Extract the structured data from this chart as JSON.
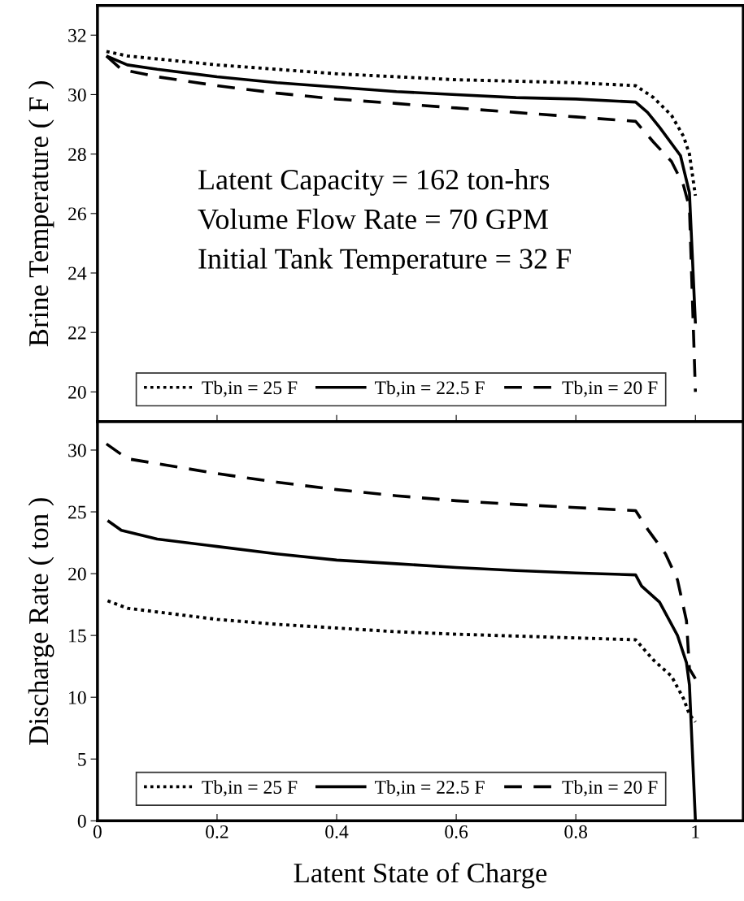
{
  "chart_data": [
    {
      "type": "line",
      "ylabel": "Brine Temperature ( F )",
      "xlim": [
        0,
        1.08
      ],
      "xticks": [
        0,
        0.2,
        0.4,
        0.6,
        0.8,
        1
      ],
      "ylim": [
        19,
        33
      ],
      "yticks": [
        20,
        22,
        24,
        26,
        28,
        30,
        32
      ],
      "tick_labels": "y",
      "legend": "bottom",
      "grid": false,
      "annotations": [
        "Latent Capacity = 162 ton-hrs",
        "Volume Flow Rate = 70 GPM",
        "Initial Tank Temperature = 32 F"
      ],
      "series": [
        {
          "name": "Tb,in = 25 F",
          "color": "#000000",
          "line_style": "dotted",
          "x": [
            0.015,
            0.05,
            0.1,
            0.2,
            0.3,
            0.4,
            0.5,
            0.6,
            0.7,
            0.8,
            0.9,
            0.93,
            0.96,
            0.98,
            0.99,
            1.0
          ],
          "values": [
            31.45,
            31.3,
            31.2,
            31.0,
            30.85,
            30.7,
            30.6,
            30.5,
            30.45,
            30.4,
            30.3,
            29.9,
            29.3,
            28.6,
            28.0,
            26.6
          ]
        },
        {
          "name": "Tb,in = 22.5 F",
          "color": "#000000",
          "line_style": "solid",
          "x": [
            0.015,
            0.05,
            0.1,
            0.2,
            0.3,
            0.4,
            0.5,
            0.6,
            0.7,
            0.8,
            0.9,
            0.92,
            0.94,
            0.975,
            0.99,
            1.0
          ],
          "values": [
            31.3,
            31.0,
            30.85,
            30.6,
            30.4,
            30.25,
            30.1,
            30.0,
            29.9,
            29.85,
            29.75,
            29.4,
            28.9,
            27.95,
            26.7,
            22.3
          ]
        },
        {
          "name": "Tb,in = 20 F",
          "color": "#000000",
          "line_style": "dashed",
          "x": [
            0.015,
            0.04,
            0.1,
            0.2,
            0.3,
            0.4,
            0.5,
            0.6,
            0.7,
            0.8,
            0.9,
            0.93,
            0.96,
            0.98,
            0.99,
            1.0
          ],
          "values": [
            31.3,
            30.85,
            30.6,
            30.3,
            30.05,
            29.85,
            29.7,
            29.55,
            29.4,
            29.25,
            29.1,
            28.4,
            27.75,
            26.95,
            26.2,
            20.0
          ]
        }
      ]
    },
    {
      "type": "line",
      "xlabel": "Latent State of Charge",
      "ylabel": "Discharge Rate ( ton )",
      "xlim": [
        0,
        1.08
      ],
      "xticks": [
        0,
        0.2,
        0.4,
        0.6,
        0.8,
        1
      ],
      "ylim": [
        0,
        32.3
      ],
      "yticks": [
        0,
        5,
        10,
        15,
        20,
        25,
        30
      ],
      "legend": "bottom",
      "grid": false,
      "series": [
        {
          "name": "Tb,in = 25 F",
          "color": "#000000",
          "line_style": "dotted",
          "x": [
            0.017,
            0.05,
            0.1,
            0.2,
            0.3,
            0.4,
            0.5,
            0.6,
            0.7,
            0.8,
            0.9,
            0.93,
            0.96,
            0.98,
            0.99,
            1.0
          ],
          "values": [
            17.8,
            17.2,
            16.9,
            16.3,
            15.9,
            15.6,
            15.3,
            15.1,
            14.95,
            14.8,
            14.65,
            13.0,
            11.7,
            9.9,
            8.6,
            8.0
          ]
        },
        {
          "name": "Tb,in = 22.5 F",
          "color": "#000000",
          "line_style": "solid",
          "x": [
            0.017,
            0.04,
            0.1,
            0.2,
            0.3,
            0.4,
            0.5,
            0.6,
            0.7,
            0.8,
            0.9,
            0.91,
            0.94,
            0.97,
            0.985,
            0.99,
            1.0
          ],
          "values": [
            24.3,
            23.5,
            22.8,
            22.2,
            21.6,
            21.1,
            20.8,
            20.5,
            20.25,
            20.05,
            19.9,
            19.0,
            17.7,
            15.0,
            12.8,
            11.0,
            0
          ]
        },
        {
          "name": "Tb,in = 20 F",
          "color": "#000000",
          "line_style": "dashed",
          "x": [
            0.015,
            0.05,
            0.1,
            0.2,
            0.3,
            0.4,
            0.5,
            0.6,
            0.7,
            0.8,
            0.9,
            0.92,
            0.95,
            0.97,
            0.985,
            0.99,
            1.0
          ],
          "values": [
            30.5,
            29.3,
            28.9,
            28.1,
            27.4,
            26.8,
            26.3,
            25.9,
            25.6,
            25.35,
            25.1,
            23.6,
            21.6,
            19.5,
            16.2,
            12.3,
            11.5
          ]
        }
      ]
    }
  ]
}
